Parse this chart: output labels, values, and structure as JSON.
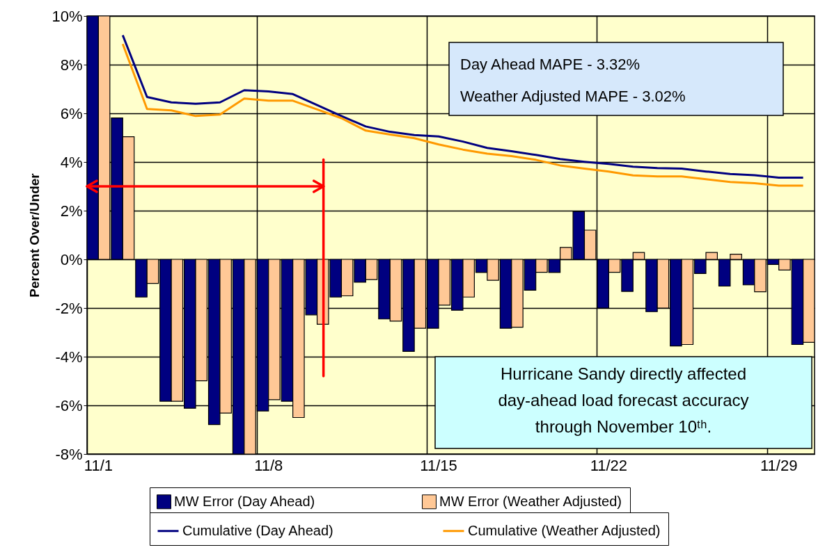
{
  "chart_data": {
    "type": "bar",
    "ylabel": "Percent Over/Under",
    "categories": [
      "11/1",
      null,
      null,
      null,
      null,
      null,
      null,
      "11/8",
      null,
      null,
      null,
      null,
      null,
      null,
      "11/15",
      null,
      null,
      null,
      null,
      null,
      null,
      "11/22",
      null,
      null,
      null,
      null,
      null,
      null,
      "11/29",
      null
    ],
    "series": [
      {
        "name": "MW Error (Day Ahead)",
        "color": "#000080",
        "values": [
          10,
          5.81,
          -1.55,
          -5.83,
          -6.12,
          -6.79,
          -8,
          -6.23,
          -5.83,
          -2.28,
          -1.55,
          -0.94,
          -2.45,
          -3.78,
          -2.83,
          -2.09,
          -0.54,
          -2.83,
          -1.27,
          -0.54,
          1.97,
          -2.0,
          -1.32,
          -2.15,
          -3.56,
          -0.58,
          -1.1,
          -1.05,
          -0.21,
          -3.5
        ]
      },
      {
        "name": "MW Error (Weather Adjusted)",
        "color": "#ffc896",
        "values": [
          10,
          5.04,
          -0.99,
          -5.83,
          -4.99,
          -6.32,
          -8,
          -5.77,
          -6.5,
          -2.67,
          -1.5,
          -0.83,
          -2.54,
          -2.83,
          -1.88,
          -1.55,
          -0.86,
          -2.79,
          -0.53,
          0.49,
          1.2,
          -0.53,
          0.28,
          -2.0,
          -3.5,
          0.28,
          0.21,
          -1.33,
          -0.44,
          -3.41
        ]
      },
      {
        "name": "Cumulative (Day Ahead)",
        "type": "line",
        "color": "#000080",
        "values": [
          null,
          9.21,
          6.67,
          6.45,
          6.39,
          6.45,
          6.95,
          6.9,
          6.79,
          6.34,
          5.89,
          5.46,
          5.24,
          5.11,
          5.05,
          4.84,
          4.58,
          4.44,
          4.29,
          4.12,
          4.01,
          3.92,
          3.81,
          3.75,
          3.73,
          3.61,
          3.51,
          3.46,
          3.36,
          3.36
        ]
      },
      {
        "name": "Cumulative (Weather Adjusted)",
        "type": "line",
        "color": "#ff9900",
        "values": [
          null,
          8.85,
          6.18,
          6.12,
          5.89,
          5.95,
          6.61,
          6.52,
          6.52,
          6.16,
          5.8,
          5.29,
          5.13,
          4.98,
          4.72,
          4.51,
          4.34,
          4.24,
          4.09,
          3.86,
          3.73,
          3.61,
          3.45,
          3.41,
          3.41,
          3.29,
          3.18,
          3.13,
          3.03,
          3.03
        ]
      }
    ],
    "ylim": [
      -8,
      10
    ],
    "yticks": [
      {
        "value": -8,
        "label": "-8%"
      },
      {
        "value": -6,
        "label": "-6%"
      },
      {
        "value": -4,
        "label": "-4%"
      },
      {
        "value": -2,
        "label": "-2%"
      },
      {
        "value": 0,
        "label": "0%"
      },
      {
        "value": 2,
        "label": "2%"
      },
      {
        "value": 4,
        "label": "4%"
      },
      {
        "value": 6,
        "label": "6%"
      },
      {
        "value": 8,
        "label": "8%"
      },
      {
        "value": 10,
        "label": "10%"
      }
    ],
    "grid": true,
    "legend": "bottom",
    "annotations": [
      "Day Ahead  MAPE -   3.32%",
      "Weather Adjusted MAPE -   3.02%",
      "Hurricane Sandy directly affected",
      "day-ahead load forecast accuracy",
      "through November 10ᵗʰ."
    ]
  }
}
